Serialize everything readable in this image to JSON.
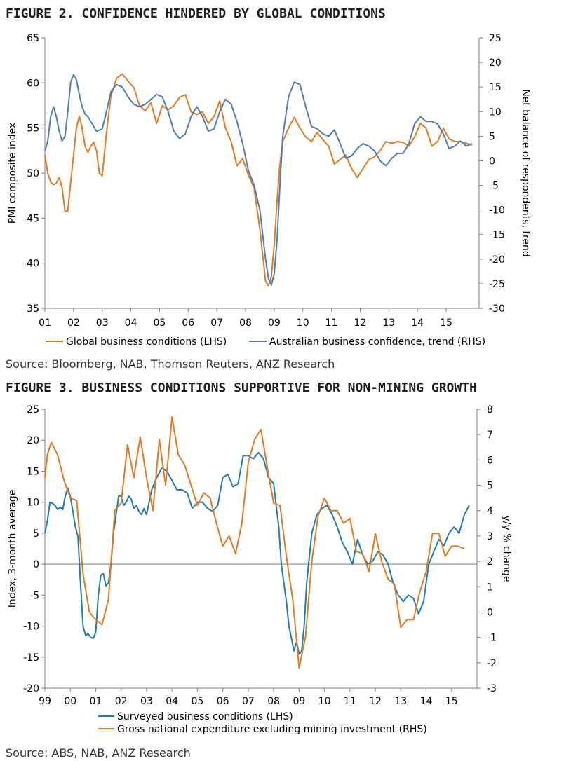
{
  "figure2": {
    "title": "FIGURE 2. CONFIDENCE HINDERED BY GLOBAL CONDITIONS",
    "source": "Source: Bloomberg, NAB, Thomson Reuters, ANZ Research"
  },
  "figure3": {
    "title": "FIGURE 3. BUSINESS CONDITIONS SUPPORTIVE FOR NON-MINING GROWTH",
    "source": "Source: ABS, NAB, ANZ Research"
  },
  "chart_data": [
    {
      "type": "line",
      "title": "FIGURE 2. CONFIDENCE HINDERED BY GLOBAL CONDITIONS",
      "xlabel": "",
      "ylabel": "PMI composite index",
      "y2label": "Net balance of respondents, trend",
      "xlim": [
        2001,
        2016.15
      ],
      "ylim": [
        35,
        65
      ],
      "y2lim": [
        -30,
        25
      ],
      "x_ticks": [
        2001,
        2002,
        2003,
        2004,
        2005,
        2006,
        2007,
        2008,
        2009,
        2010,
        2011,
        2012,
        2013,
        2014,
        2015
      ],
      "x_tick_labels": [
        "01",
        "02",
        "03",
        "04",
        "05",
        "06",
        "07",
        "08",
        "09",
        "10",
        "11",
        "12",
        "13",
        "14",
        "15"
      ],
      "y_ticks": [
        35,
        40,
        45,
        50,
        55,
        60,
        65
      ],
      "y2_ticks": [
        -30,
        -25,
        -20,
        -15,
        -10,
        -5,
        0,
        5,
        10,
        15,
        20,
        25
      ],
      "legend_position": "bottom",
      "series": [
        {
          "name": "Global business conditions (LHS)",
          "axis": "left",
          "color": "#e07b24",
          "x": [
            2001,
            2001.1,
            2001.2,
            2001.3,
            2001.4,
            2001.5,
            2001.6,
            2001.7,
            2001.8,
            2001.9,
            2002,
            2002.1,
            2002.2,
            2002.3,
            2002.4,
            2002.5,
            2002.6,
            2002.7,
            2002.8,
            2002.9,
            2003,
            2003.15,
            2003.3,
            2003.5,
            2003.7,
            2003.9,
            2004.1,
            2004.3,
            2004.5,
            2004.7,
            2004.9,
            2005.1,
            2005.3,
            2005.5,
            2005.7,
            2005.9,
            2006.1,
            2006.3,
            2006.5,
            2006.7,
            2006.9,
            2007.1,
            2007.3,
            2007.5,
            2007.7,
            2007.9,
            2008.1,
            2008.3,
            2008.5,
            2008.7,
            2008.8,
            2008.9,
            2009,
            2009.1,
            2009.2,
            2009.3,
            2009.5,
            2009.7,
            2009.9,
            2010.1,
            2010.3,
            2010.5,
            2010.7,
            2010.9,
            2011.1,
            2011.3,
            2011.5,
            2011.7,
            2011.9,
            2012.1,
            2012.3,
            2012.5,
            2012.7,
            2012.9,
            2013.1,
            2013.3,
            2013.5,
            2013.7,
            2013.9,
            2014.1,
            2014.3,
            2014.5,
            2014.7,
            2014.9,
            2015.1,
            2015.3,
            2015.5,
            2015.7,
            2015.9
          ],
          "values": [
            52.0,
            50.0,
            49.0,
            48.7,
            48.9,
            49.5,
            48.4,
            45.8,
            45.8,
            49.0,
            52.0,
            55.0,
            56.3,
            55.0,
            53.0,
            52.3,
            53.0,
            53.4,
            52.5,
            50.0,
            49.7,
            54.5,
            58.5,
            60.5,
            61.0,
            60.2,
            59.5,
            57.5,
            56.9,
            57.8,
            55.5,
            57.5,
            57.0,
            57.5,
            58.4,
            58.7,
            56.8,
            56.5,
            56.8,
            55.5,
            56.3,
            58.0,
            55.0,
            53.5,
            50.8,
            51.6,
            49.8,
            48.3,
            43.8,
            38.0,
            37.5,
            38.5,
            42.0,
            47.0,
            51.0,
            53.5,
            55.0,
            56.2,
            55.0,
            54.0,
            53.5,
            54.5,
            53.7,
            53.0,
            51.0,
            51.5,
            52.0,
            50.5,
            49.5,
            50.5,
            51.5,
            51.8,
            52.5,
            53.5,
            53.3,
            53.5,
            53.4,
            53.0,
            54.0,
            55.5,
            55.0,
            53.0,
            53.5,
            55.0,
            53.8,
            53.5,
            53.5,
            53.3,
            53.1
          ]
        },
        {
          "name": "Australian business confidence, trend (RHS)",
          "axis": "right",
          "color": "#4f7db4",
          "x": [
            2001,
            2001.1,
            2001.2,
            2001.3,
            2001.4,
            2001.5,
            2001.6,
            2001.7,
            2001.8,
            2001.9,
            2002,
            2002.1,
            2002.2,
            2002.3,
            2002.4,
            2002.5,
            2002.6,
            2002.8,
            2003,
            2003.15,
            2003.3,
            2003.5,
            2003.7,
            2003.9,
            2004.1,
            2004.3,
            2004.5,
            2004.7,
            2004.9,
            2005.1,
            2005.3,
            2005.5,
            2005.7,
            2005.9,
            2006.1,
            2006.3,
            2006.5,
            2006.7,
            2006.9,
            2007.1,
            2007.3,
            2007.5,
            2007.7,
            2007.9,
            2008.1,
            2008.3,
            2008.5,
            2008.7,
            2008.8,
            2008.9,
            2009,
            2009.1,
            2009.2,
            2009.3,
            2009.5,
            2009.7,
            2009.9,
            2010.1,
            2010.3,
            2010.5,
            2010.7,
            2010.9,
            2011.1,
            2011.3,
            2011.5,
            2011.7,
            2011.9,
            2012.1,
            2012.3,
            2012.5,
            2012.7,
            2012.9,
            2013.1,
            2013.3,
            2013.5,
            2013.7,
            2013.9,
            2014.1,
            2014.3,
            2014.5,
            2014.7,
            2014.9,
            2015.1,
            2015.3,
            2015.5,
            2015.7,
            2015.9
          ],
          "values": [
            2.0,
            4.0,
            9.0,
            11.0,
            9.0,
            6.0,
            4.0,
            5.0,
            10.0,
            16.0,
            17.5,
            16.5,
            13.5,
            11.0,
            9.5,
            9.0,
            8.0,
            6.0,
            6.5,
            10.0,
            14.0,
            15.5,
            15.0,
            13.0,
            11.5,
            11.0,
            11.5,
            12.5,
            13.5,
            13.0,
            10.0,
            6.0,
            4.5,
            5.5,
            9.0,
            11.0,
            9.0,
            6.0,
            6.5,
            10.0,
            12.5,
            11.5,
            8.0,
            3.5,
            -2.0,
            -5.0,
            -10.0,
            -20.0,
            -24.0,
            -25.3,
            -23.0,
            -16.0,
            -5.0,
            5.0,
            13.0,
            16.0,
            15.5,
            11.0,
            7.0,
            6.5,
            5.5,
            5.0,
            6.3,
            3.5,
            0.5,
            1.0,
            2.5,
            3.5,
            3.0,
            2.0,
            0.0,
            -1.0,
            0.5,
            1.5,
            1.5,
            3.5,
            7.5,
            9.0,
            8.0,
            8.0,
            7.5,
            5.5,
            2.5,
            3.0,
            4.0,
            3.0,
            3.5
          ]
        }
      ]
    },
    {
      "type": "line",
      "title": "FIGURE 3. BUSINESS CONDITIONS SUPPORTIVE FOR NON-MINING GROWTH",
      "xlabel": "",
      "ylabel": "Index, 3-month average",
      "y2label": "y/y % change",
      "xlim": [
        1999,
        2016
      ],
      "ylim": [
        -20,
        25
      ],
      "y2lim": [
        -3,
        8
      ],
      "x_ticks": [
        1999,
        2000,
        2001,
        2002,
        2003,
        2004,
        2005,
        2006,
        2007,
        2008,
        2009,
        2010,
        2011,
        2012,
        2013,
        2014,
        2015
      ],
      "x_tick_labels": [
        "99",
        "00",
        "01",
        "02",
        "03",
        "04",
        "05",
        "06",
        "07",
        "08",
        "09",
        "10",
        "11",
        "12",
        "13",
        "14",
        "15"
      ],
      "y_ticks": [
        -20,
        -15,
        -10,
        -5,
        0,
        5,
        10,
        15,
        20,
        25
      ],
      "y2_ticks": [
        -3,
        -2,
        -1,
        0,
        1,
        2,
        3,
        4,
        5,
        6,
        7,
        8
      ],
      "legend_position": "bottom",
      "series": [
        {
          "name": "Surveyed business conditions (LHS)",
          "axis": "left",
          "color": "#1f7db4",
          "x": [
            1999,
            1999.1,
            1999.2,
            1999.3,
            1999.4,
            1999.5,
            1999.6,
            1999.7,
            1999.8,
            1999.9,
            2000,
            2000.1,
            2000.2,
            2000.3,
            2000.4,
            2000.5,
            2000.6,
            2000.7,
            2000.8,
            2000.9,
            2001,
            2001.1,
            2001.2,
            2001.3,
            2001.4,
            2001.5,
            2001.6,
            2001.7,
            2001.8,
            2001.9,
            2002,
            2002.1,
            2002.2,
            2002.3,
            2002.4,
            2002.5,
            2002.6,
            2002.7,
            2002.8,
            2002.9,
            2003,
            2003.2,
            2003.4,
            2003.6,
            2003.8,
            2004,
            2004.2,
            2004.4,
            2004.6,
            2004.8,
            2005,
            2005.2,
            2005.4,
            2005.6,
            2005.8,
            2006,
            2006.2,
            2006.4,
            2006.6,
            2006.8,
            2007,
            2007.2,
            2007.4,
            2007.6,
            2007.8,
            2008,
            2008.1,
            2008.2,
            2008.3,
            2008.4,
            2008.5,
            2008.6,
            2008.7,
            2008.8,
            2008.9,
            2009,
            2009.1,
            2009.2,
            2009.3,
            2009.5,
            2009.7,
            2009.9,
            2010.1,
            2010.3,
            2010.5,
            2010.7,
            2010.9,
            2011.1,
            2011.3,
            2011.5,
            2011.7,
            2011.9,
            2012.1,
            2012.3,
            2012.5,
            2012.7,
            2012.9,
            2013.1,
            2013.3,
            2013.5,
            2013.7,
            2013.9,
            2014.1,
            2014.3,
            2014.5,
            2014.7,
            2014.9,
            2015.1,
            2015.3,
            2015.5,
            2015.7
          ],
          "values": [
            5.0,
            7.0,
            10.0,
            9.8,
            9.5,
            8.8,
            9.2,
            8.8,
            11.0,
            12.3,
            11.0,
            8.5,
            6.0,
            4.5,
            -3.0,
            -10.0,
            -11.5,
            -11.2,
            -11.8,
            -12.0,
            -11.0,
            -5.0,
            -1.8,
            -1.5,
            -3.5,
            -3.0,
            0.0,
            5.0,
            8.0,
            11.0,
            11.0,
            9.5,
            10.0,
            11.0,
            10.5,
            9.0,
            9.5,
            8.5,
            8.0,
            9.0,
            8.0,
            12.0,
            14.0,
            15.5,
            15.0,
            13.5,
            12.0,
            12.0,
            11.5,
            9.0,
            10.0,
            10.0,
            9.0,
            8.5,
            9.5,
            14.0,
            14.5,
            12.5,
            13.0,
            17.5,
            17.5,
            17.0,
            18.0,
            17.0,
            14.0,
            13.0,
            9.5,
            6.0,
            0.0,
            -3.0,
            -6.0,
            -10.0,
            -12.0,
            -14.0,
            -12.5,
            -14.5,
            -14.0,
            -10.0,
            -3.0,
            5.0,
            8.0,
            9.0,
            9.5,
            8.0,
            6.0,
            3.5,
            2.0,
            0.0,
            4.0,
            1.5,
            0.0,
            0.5,
            2.0,
            1.5,
            0.0,
            -3.0,
            -5.0,
            -6.0,
            -5.0,
            -5.5,
            -8.0,
            -6.0,
            0.0,
            2.0,
            4.0,
            3.0,
            5.0,
            6.0,
            5.0,
            8.0,
            9.5
          ]
        },
        {
          "name": "Gross national expenditure excluding mining investment (RHS)",
          "axis": "right",
          "color": "#e07b24",
          "x": [
            1999,
            1999.1,
            1999.25,
            1999.5,
            1999.75,
            2000,
            2000.25,
            2000.5,
            2000.75,
            2001,
            2001.25,
            2001.5,
            2001.75,
            2002,
            2002.25,
            2002.5,
            2002.75,
            2003,
            2003.25,
            2003.5,
            2003.75,
            2004,
            2004.25,
            2004.5,
            2004.75,
            2005,
            2005.25,
            2005.5,
            2005.75,
            2006,
            2006.25,
            2006.5,
            2006.75,
            2007,
            2007.25,
            2007.5,
            2007.75,
            2008,
            2008.25,
            2008.5,
            2008.75,
            2009,
            2009.25,
            2009.5,
            2009.75,
            2010,
            2010.25,
            2010.5,
            2010.75,
            2011,
            2011.25,
            2011.5,
            2011.75,
            2012,
            2012.25,
            2012.5,
            2012.75,
            2013,
            2013.25,
            2013.5,
            2013.75,
            2014,
            2014.25,
            2014.5,
            2014.75,
            2015,
            2015.25,
            2015.5
          ],
          "values": [
            5.3,
            6.2,
            6.7,
            6.2,
            5.2,
            4.5,
            4.4,
            1.5,
            0.0,
            -0.3,
            -0.5,
            0.5,
            4.0,
            4.3,
            6.6,
            5.3,
            6.9,
            5.3,
            4.0,
            6.8,
            5.0,
            7.7,
            6.2,
            5.8,
            5.0,
            4.2,
            4.7,
            4.5,
            3.5,
            2.6,
            3.0,
            2.3,
            3.5,
            5.9,
            6.8,
            7.2,
            5.7,
            4.3,
            4.2,
            2.2,
            0.5,
            -2.2,
            -1.0,
            2.0,
            3.8,
            4.5,
            4.0,
            4.0,
            3.5,
            3.7,
            2.4,
            2.3,
            1.6,
            3.1,
            2.0,
            1.3,
            1.1,
            -0.6,
            -0.3,
            -0.3,
            0.8,
            1.6,
            3.1,
            3.1,
            2.2,
            2.6,
            2.6,
            2.5
          ]
        }
      ]
    }
  ]
}
